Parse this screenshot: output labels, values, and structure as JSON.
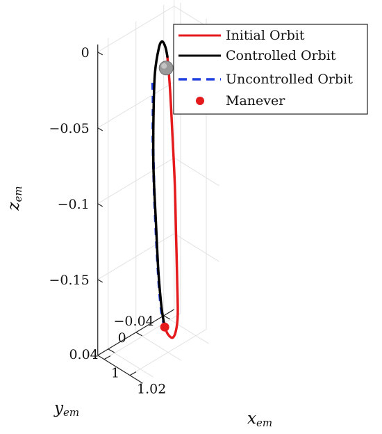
{
  "chart_data": {
    "type": "line",
    "projection": "3d",
    "axes": {
      "x": {
        "label_main": "x",
        "label_sub": "em",
        "ticks": [
          {
            "value": 1.0,
            "label": "1"
          },
          {
            "value": 1.02,
            "label": "1.02"
          }
        ]
      },
      "y": {
        "label_main": "y",
        "label_sub": "em",
        "ticks": [
          {
            "value": -0.04,
            "label": "−0.04"
          },
          {
            "value": 0,
            "label": "0"
          },
          {
            "value": 0.04,
            "label": "0.04"
          }
        ]
      },
      "z": {
        "label_main": "z",
        "label_sub": "em",
        "ticks": [
          {
            "value": 0,
            "label": "0"
          },
          {
            "value": -0.05,
            "label": "−0.05"
          },
          {
            "value": -0.1,
            "label": "−0.1"
          },
          {
            "value": -0.15,
            "label": "−0.15"
          }
        ]
      }
    },
    "grid": true,
    "legend_position": "top-right",
    "series": [
      {
        "name": "Initial Orbit",
        "color": "#e41a1c",
        "style": "solid",
        "points": [
          {
            "x": 1.013,
            "y": -0.012,
            "z": -0.012
          },
          {
            "x": 1.016,
            "y": -0.01,
            "z": -0.03
          },
          {
            "x": 1.019,
            "y": -0.008,
            "z": -0.058
          },
          {
            "x": 1.022,
            "y": -0.006,
            "z": -0.09
          },
          {
            "x": 1.024,
            "y": -0.004,
            "z": -0.12
          },
          {
            "x": 1.026,
            "y": -0.002,
            "z": -0.15
          },
          {
            "x": 1.027,
            "y": -0.001,
            "z": -0.172
          },
          {
            "x": 1.026,
            "y": 0.0,
            "z": -0.183
          },
          {
            "x": 1.024,
            "y": 0.001,
            "z": -0.188
          },
          {
            "x": 1.021,
            "y": 0.002,
            "z": -0.187
          },
          {
            "x": 1.019,
            "y": 0.003,
            "z": -0.183
          }
        ]
      },
      {
        "name": "Controlled Orbit",
        "color": "#000000",
        "style": "solid",
        "points": [
          {
            "x": 1.019,
            "y": 0.003,
            "z": -0.183
          },
          {
            "x": 1.016,
            "y": 0.002,
            "z": -0.172
          },
          {
            "x": 1.013,
            "y": 0.001,
            "z": -0.15
          },
          {
            "x": 1.01,
            "y": -0.001,
            "z": -0.12
          },
          {
            "x": 1.007,
            "y": -0.003,
            "z": -0.085
          },
          {
            "x": 1.006,
            "y": -0.005,
            "z": -0.05
          },
          {
            "x": 1.006,
            "y": -0.007,
            "z": -0.025
          },
          {
            "x": 1.008,
            "y": -0.009,
            "z": -0.008
          },
          {
            "x": 1.01,
            "y": -0.01,
            "z": -0.003
          },
          {
            "x": 1.012,
            "y": -0.011,
            "z": -0.006
          },
          {
            "x": 1.013,
            "y": -0.012,
            "z": -0.012
          }
        ]
      },
      {
        "name": "Uncontrolled Orbit",
        "color": "#1f3fe0",
        "style": "dashed",
        "points": [
          {
            "x": 1.019,
            "y": 0.003,
            "z": -0.183
          },
          {
            "x": 1.016,
            "y": 0.002,
            "z": -0.175
          },
          {
            "x": 1.013,
            "y": 0.0,
            "z": -0.16
          },
          {
            "x": 1.01,
            "y": -0.002,
            "z": -0.135
          },
          {
            "x": 1.007,
            "y": -0.004,
            "z": -0.1
          },
          {
            "x": 1.005,
            "y": -0.006,
            "z": -0.07
          },
          {
            "x": 1.004,
            "y": -0.008,
            "z": -0.045
          },
          {
            "x": 1.003,
            "y": -0.009,
            "z": -0.03
          }
        ]
      },
      {
        "name": "Manever",
        "color": "#e41a1c",
        "style": "marker",
        "points": [
          {
            "x": 1.019,
            "y": 0.003,
            "z": -0.183
          }
        ]
      }
    ],
    "moon_marker": {
      "x": 1.012,
      "y": -0.012,
      "z": -0.02,
      "color": "#9a9a9a"
    }
  }
}
